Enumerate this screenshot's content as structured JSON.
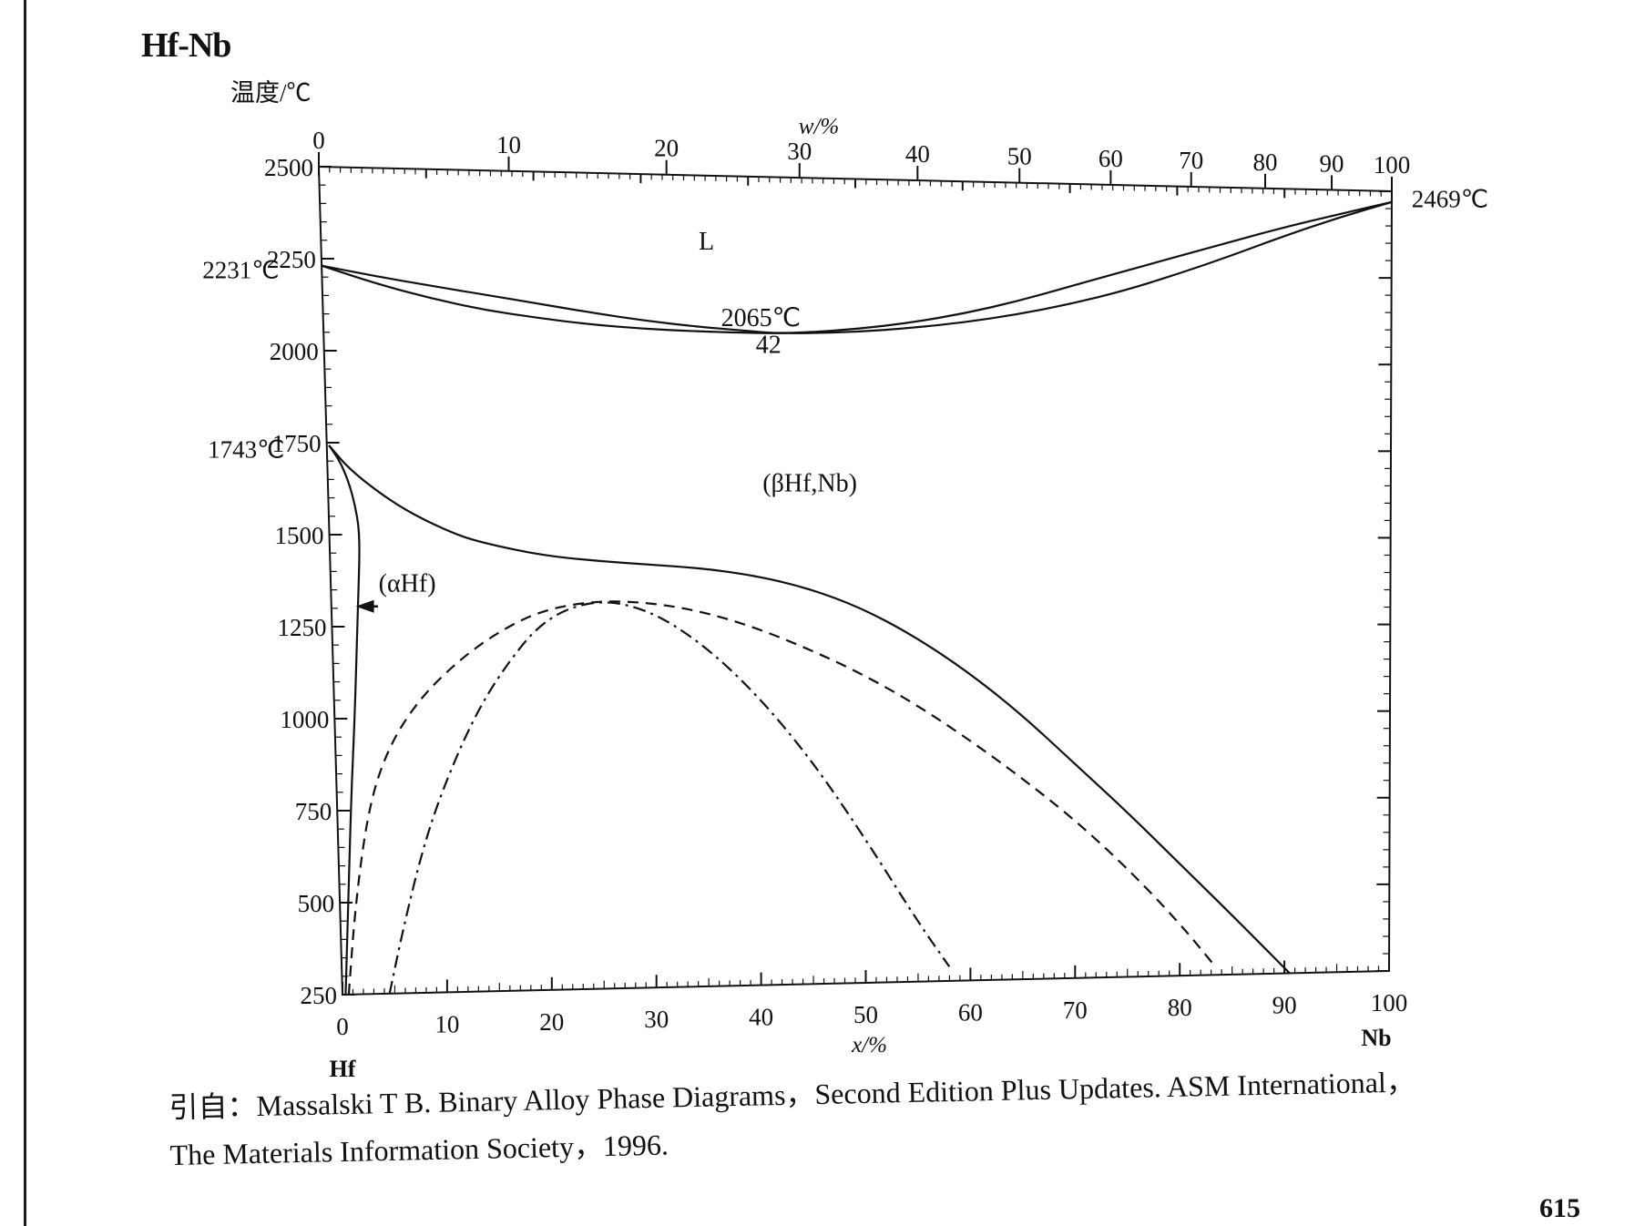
{
  "figure_title": "Hf-Nb",
  "y_axis_label": "温度/℃",
  "top_axis_label": "w/%",
  "bottom_axis_label": "x/%",
  "left_end_label": "Hf",
  "right_end_label": "Nb",
  "citation_lines": [
    "引自：Massalski T B.  Binary Alloy Phase Diagrams，Second Edition Plus Updates.  ASM International，",
    "The Materials Information Society，1996."
  ],
  "page_number": "615",
  "chart_data": {
    "type": "line",
    "title": "Hf-Nb",
    "xlabel": "x/%",
    "x2label": "w/%",
    "ylabel": "温度/℃",
    "xlim": [
      0,
      100
    ],
    "ylim": [
      250,
      2500
    ],
    "x_ticks": [
      "0",
      "10",
      "20",
      "30",
      "40",
      "50",
      "60",
      "70",
      "80",
      "90",
      "100"
    ],
    "x_tick_values": [
      0,
      10,
      20,
      30,
      40,
      50,
      60,
      70,
      80,
      90,
      100
    ],
    "w_ticks": [
      "0",
      "10",
      "20",
      "30",
      "40",
      "50",
      "60",
      "70",
      "80",
      "90",
      "100"
    ],
    "w_tick_positions_x": [
      0,
      17.7,
      32.4,
      44.8,
      55.8,
      65.3,
      73.8,
      81.3,
      88.2,
      94.4,
      100
    ],
    "y_ticks": [
      "250",
      "500",
      "750",
      "1000",
      "1250",
      "1500",
      "1750",
      "2000",
      "2250",
      "2500"
    ],
    "y_tick_values": [
      250,
      500,
      750,
      1000,
      1250,
      1500,
      1750,
      2000,
      2250,
      2500
    ],
    "grid": false,
    "series": [
      {
        "style": "solid",
        "x": [
          0,
          5,
          10,
          15,
          20,
          25,
          30,
          35,
          40,
          42,
          45,
          50,
          55,
          60,
          65,
          70,
          75,
          80,
          85,
          90,
          95,
          100
        ],
        "y": [
          2231,
          2205,
          2182,
          2160,
          2138,
          2115,
          2095,
          2080,
          2070,
          2065,
          2068,
          2080,
          2100,
          2128,
          2165,
          2210,
          2255,
          2300,
          2345,
          2390,
          2430,
          2469
        ]
      },
      {
        "style": "solid",
        "x": [
          0,
          5,
          10,
          15,
          20,
          25,
          30,
          35,
          40,
          42,
          45,
          50,
          55,
          60,
          65,
          70,
          75,
          80,
          85,
          90,
          95,
          100
        ],
        "y": [
          2231,
          2185,
          2148,
          2118,
          2098,
          2082,
          2072,
          2067,
          2065,
          2065,
          2066,
          2072,
          2085,
          2103,
          2128,
          2160,
          2200,
          2250,
          2305,
          2365,
          2420,
          2469
        ]
      },
      {
        "style": "solid",
        "x": [
          0.2,
          2,
          5,
          8,
          12,
          15,
          20,
          25,
          30,
          35,
          40,
          45,
          50,
          55,
          60,
          65,
          70,
          75,
          80,
          85,
          90.5
        ],
        "y": [
          1743,
          1680,
          1610,
          1555,
          1500,
          1475,
          1445,
          1430,
          1420,
          1410,
          1390,
          1355,
          1300,
          1220,
          1120,
          1000,
          860,
          720,
          570,
          420,
          250
        ]
      },
      {
        "style": "solid",
        "x": [
          0.2,
          1.2,
          2,
          2.5,
          2.8,
          2.8,
          2.6,
          2.3,
          1.9,
          1.4,
          1,
          0.6,
          0.3
        ],
        "y": [
          1743,
          1700,
          1640,
          1580,
          1520,
          1450,
          1350,
          1200,
          1000,
          800,
          600,
          400,
          250
        ]
      },
      {
        "style": "dashed",
        "x": [
          0.6,
          1.5,
          3,
          5,
          8,
          12,
          16,
          20,
          25,
          30,
          35,
          40,
          45,
          50,
          55,
          60,
          65,
          70,
          75,
          80,
          83.5
        ],
        "y": [
          250,
          500,
          760,
          920,
          1050,
          1160,
          1240,
          1295,
          1320,
          1315,
          1290,
          1245,
          1185,
          1115,
          1030,
          930,
          820,
          700,
          560,
          400,
          270
        ]
      },
      {
        "style": "dashdot",
        "x": [
          4.5,
          6,
          8,
          10,
          13,
          16,
          20,
          25,
          30,
          35,
          40,
          45,
          50,
          55,
          58
        ],
        "y": [
          250,
          430,
          640,
          800,
          990,
          1130,
          1270,
          1325,
          1295,
          1200,
          1060,
          880,
          660,
          420,
          290
        ]
      }
    ],
    "annotations": [
      "L",
      "2065℃",
      "42",
      "(βHf,Nb)",
      "(αHf)",
      "2231℃",
      "1743℃",
      "2469℃"
    ]
  }
}
